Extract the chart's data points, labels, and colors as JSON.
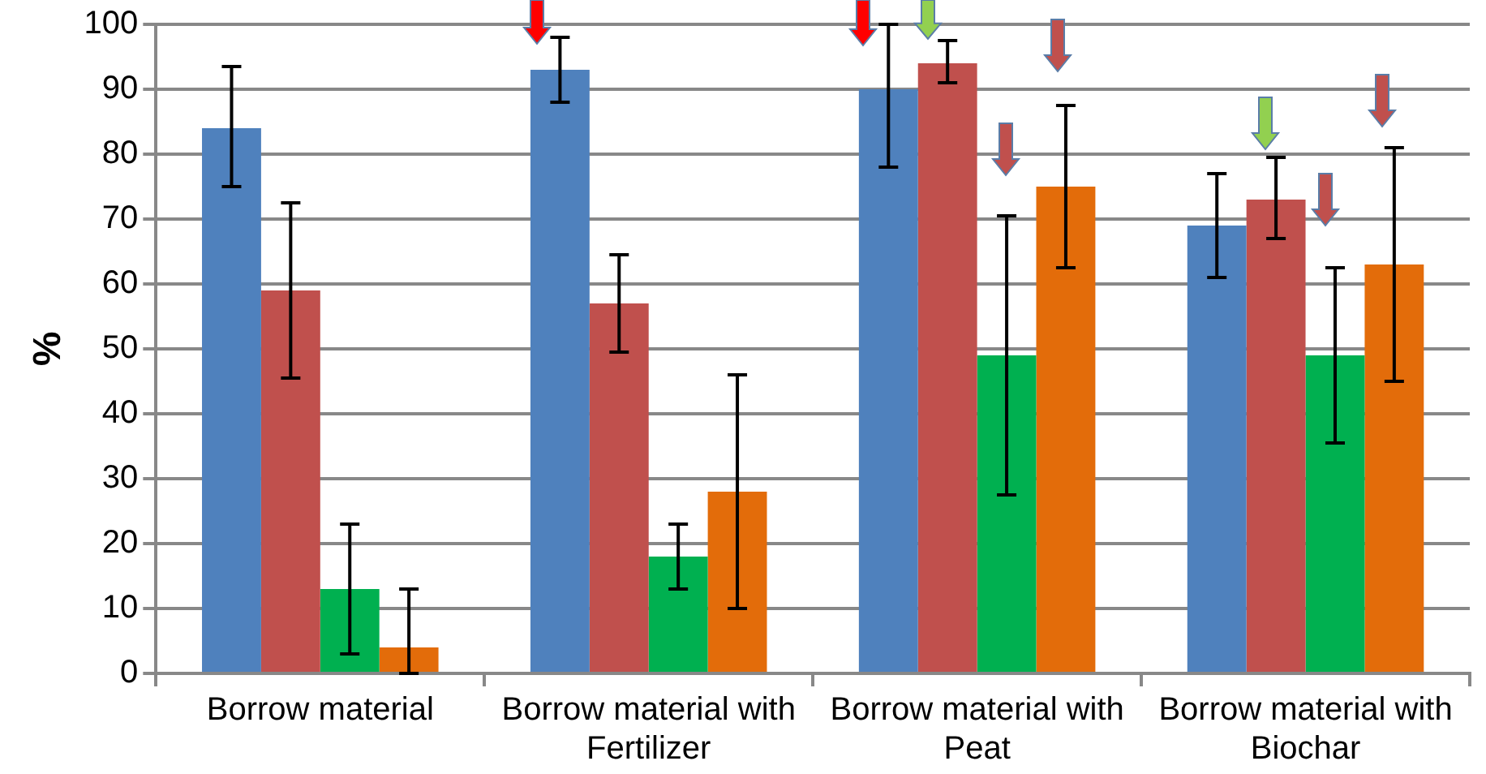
{
  "chart_data": {
    "type": "bar",
    "ylabel": "%",
    "categories": [
      "Borrow material",
      "Borrow material with Fertilizer",
      "Borrow material with Peat",
      "Borrow material with Biochar"
    ],
    "series": [
      {
        "color": "#4f81bd",
        "values": [
          84,
          93,
          90,
          69
        ],
        "errors": [
          [
            75,
            93.5
          ],
          [
            88,
            98
          ],
          [
            78,
            100
          ],
          [
            61,
            77
          ]
        ]
      },
      {
        "color": "#c0504d",
        "values": [
          59,
          57,
          94,
          73
        ],
        "errors": [
          [
            45.5,
            72.5
          ],
          [
            49.5,
            64.5
          ],
          [
            91,
            97.5
          ],
          [
            67,
            79.5
          ]
        ]
      },
      {
        "color": "#00b050",
        "values": [
          13,
          18,
          49,
          49
        ],
        "errors": [
          [
            3,
            23
          ],
          [
            13,
            23
          ],
          [
            27.5,
            70.5
          ],
          [
            35.5,
            62.5
          ]
        ]
      },
      {
        "color": "#e36c0a",
        "values": [
          4,
          28,
          75,
          63
        ],
        "errors": [
          [
            0,
            13
          ],
          [
            10,
            46
          ],
          [
            62.5,
            87.5
          ],
          [
            45,
            81
          ]
        ]
      }
    ],
    "ylim": [
      0,
      100
    ],
    "yticks": [
      0,
      10,
      20,
      30,
      40,
      50,
      60,
      70,
      80,
      90,
      100
    ],
    "grid": "y",
    "legend": false
  }
}
